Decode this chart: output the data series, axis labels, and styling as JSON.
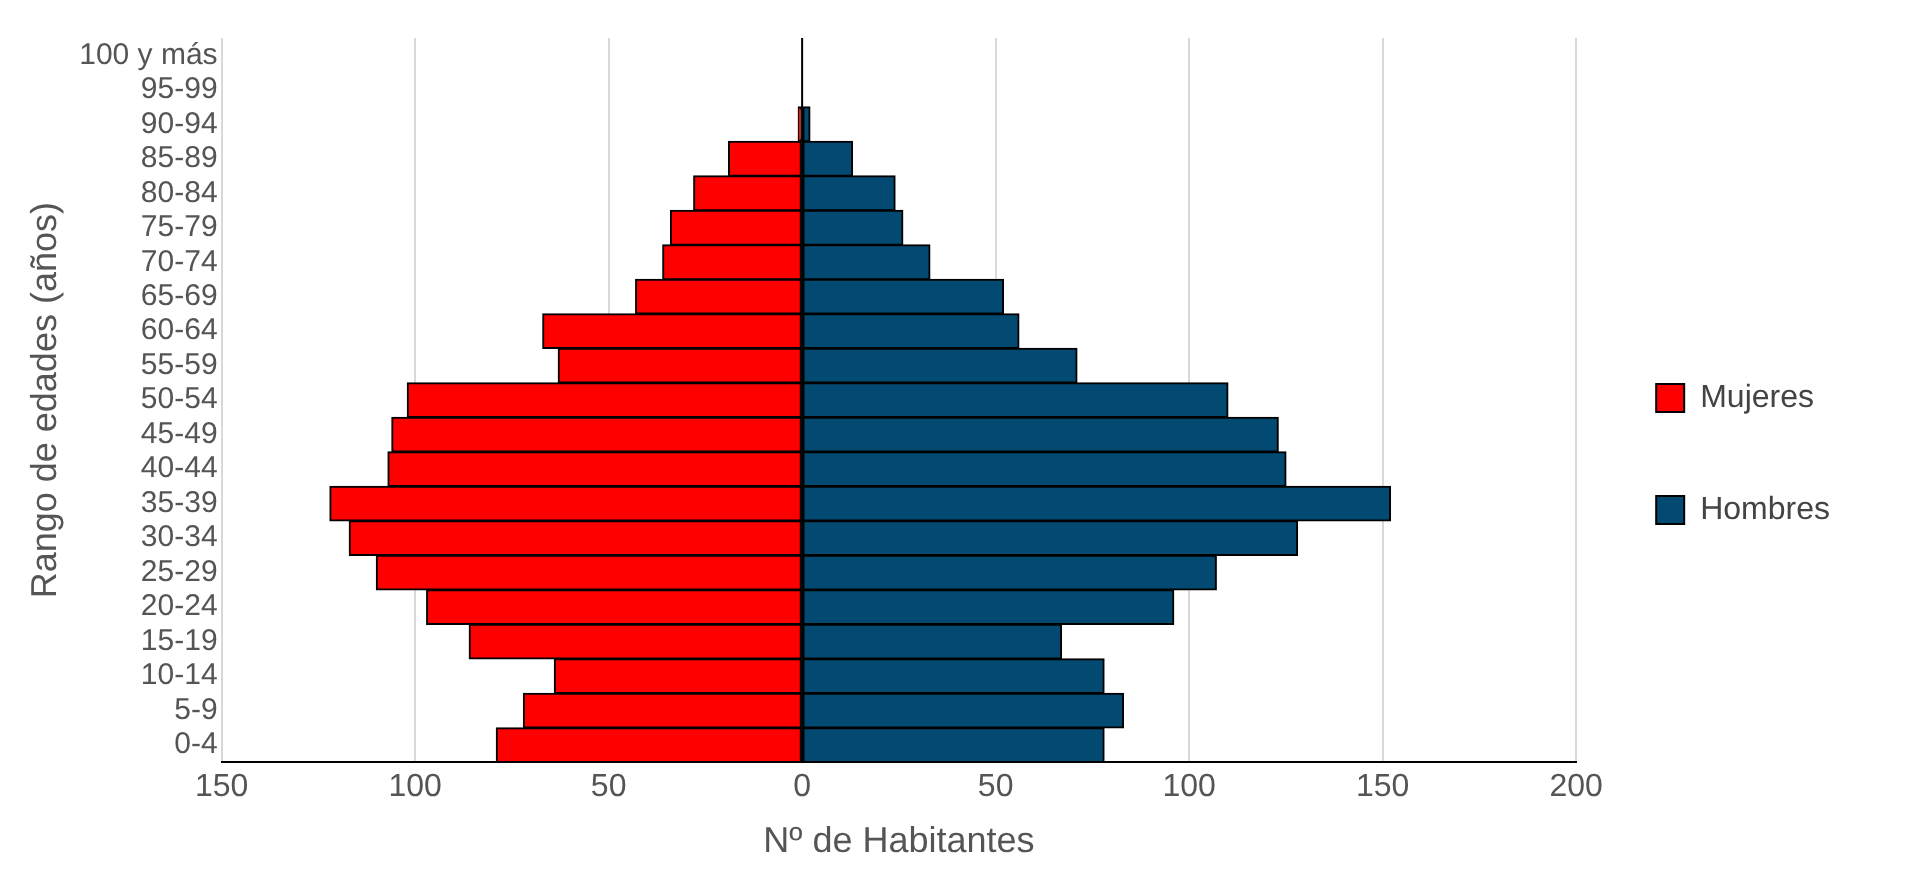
{
  "chart_data": {
    "type": "bar",
    "orientation": "horizontal",
    "stacked": true,
    "xlabel": "Nº de Habitantes",
    "ylabel": "Rango de edades (años)",
    "categories": [
      "100 y más",
      "95-99",
      "90-94",
      "85-89",
      "80-84",
      "75-79",
      "70-74",
      "65-69",
      "60-64",
      "55-59",
      "50-54",
      "45-49",
      "40-44",
      "35-39",
      "30-34",
      "25-29",
      "20-24",
      "15-19",
      "10-14",
      "5-9",
      "0-4"
    ],
    "series": [
      {
        "name": "Mujeres",
        "color": "#ff0000",
        "values": [
          0,
          0,
          -1,
          -19,
          -28,
          -34,
          -36,
          -43,
          -67,
          -63,
          -102,
          -106,
          -107,
          -122,
          -117,
          -110,
          -97,
          -86,
          -64,
          -72,
          -79
        ]
      },
      {
        "name": "Hombres",
        "color": "#034a73",
        "values": [
          0,
          0,
          2,
          13,
          24,
          26,
          33,
          52,
          56,
          71,
          110,
          123,
          125,
          152,
          128,
          107,
          96,
          67,
          78,
          83,
          78
        ]
      }
    ],
    "xlim": [
      -150,
      200
    ],
    "xticks": [
      {
        "value": -150,
        "label": "150"
      },
      {
        "value": -100,
        "label": "100"
      },
      {
        "value": -50,
        "label": "50"
      },
      0,
      50,
      100,
      150,
      200
    ],
    "grid": "x",
    "legend": "right"
  }
}
